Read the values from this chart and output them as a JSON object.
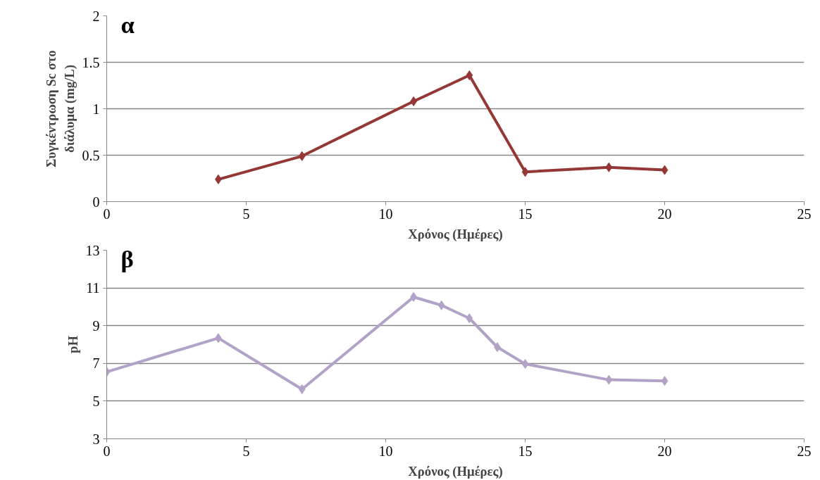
{
  "chart_data": [
    {
      "type": "line",
      "xlabel": "Χρόνος (Ημέρες)",
      "ylabel": "Συγκέντρωση Sc στο\nδιάλυμα (mg/L)",
      "annotations": [
        "α"
      ],
      "x": [
        4,
        7,
        11,
        13,
        15,
        18,
        20
      ],
      "series": [
        {
          "color": "#953735",
          "values": [
            0.24,
            0.49,
            1.08,
            1.36,
            0.32,
            0.37,
            0.34
          ]
        }
      ],
      "xlim": [
        0,
        25
      ],
      "xticks": [
        0,
        5,
        10,
        15,
        20,
        25
      ],
      "ylim": [
        0,
        2
      ],
      "yticks": [
        0,
        0.5,
        1,
        1.5,
        2
      ],
      "grid": "y",
      "marker": "diamond",
      "line_style": "solid"
    },
    {
      "type": "line",
      "xlabel": "Χρόνος (Ημέρες)",
      "ylabel": "pH",
      "annotations": [
        "β"
      ],
      "x": [
        0,
        4,
        7,
        11,
        12,
        13,
        14,
        15,
        18,
        20
      ],
      "series": [
        {
          "color": "#b3a2c7",
          "values": [
            6.55,
            8.34,
            5.63,
            10.52,
            10.08,
            9.39,
            7.86,
            6.97,
            6.13,
            6.07
          ]
        }
      ],
      "xlim": [
        0,
        25
      ],
      "xticks": [
        0,
        5,
        10,
        15,
        20,
        25
      ],
      "ylim": [
        3,
        13
      ],
      "yticks": [
        3,
        5,
        7,
        9,
        11,
        13
      ],
      "grid": "y",
      "marker": "diamond",
      "line_style": "solid"
    }
  ]
}
